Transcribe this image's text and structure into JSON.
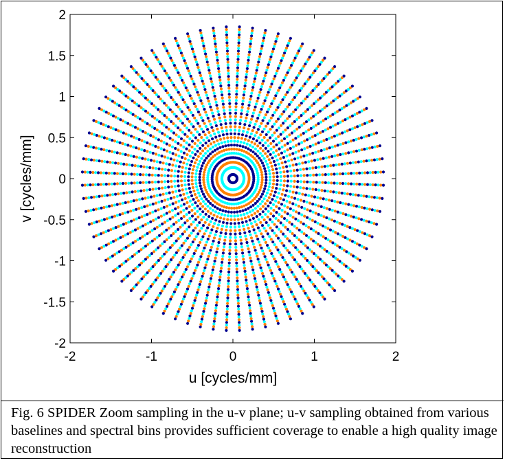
{
  "caption": "Fig. 6 SPIDER  Zoom sampling in the u-v plane; u-v sampling obtained from various baselines and spectral bins provides sufficient coverage to enable a high quality image reconstruction",
  "chart_data": {
    "type": "scatter",
    "title": "",
    "xlabel": "u [cycles/mm]",
    "ylabel": "v [cycles/mm]",
    "xlim": [
      -2,
      2
    ],
    "ylim": [
      -2,
      2
    ],
    "xticks": [
      -2,
      -1,
      0,
      1,
      2
    ],
    "yticks": [
      -2,
      -1.5,
      -1,
      -0.5,
      0,
      0.5,
      1,
      1.5,
      2
    ],
    "xtick_labels": [
      "-2",
      "-1",
      "0",
      "1",
      "2"
    ],
    "ytick_labels": [
      "-2",
      "-1.5",
      "-1",
      "-0.5",
      "0",
      "0.5",
      "1",
      "1.5",
      "2"
    ],
    "grid": false,
    "legend": "none",
    "pattern": "radial spokes",
    "spoke_count": 72,
    "radius_min": 0.05,
    "radius_max": 1.85,
    "points_per_spoke": 46,
    "color_scale": "jet",
    "colors": [
      "#00008f",
      "#0000ff",
      "#0080ff",
      "#00ffff",
      "#80ff80",
      "#ffff00",
      "#ff8000",
      "#ff0000",
      "#800000"
    ],
    "axis_color": "#000000"
  }
}
